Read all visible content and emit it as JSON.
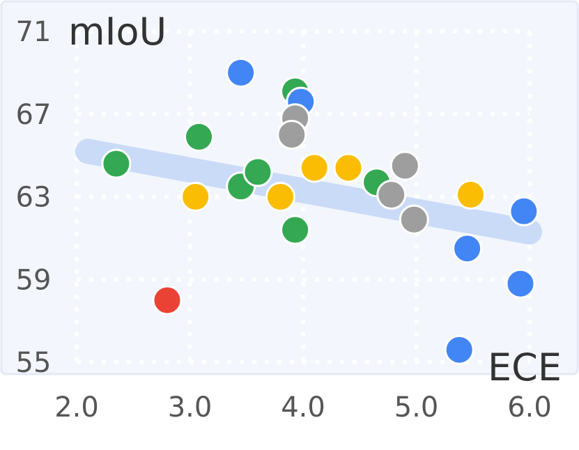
{
  "chart_data": {
    "type": "scatter",
    "xlabel": "ECE",
    "ylabel": "mIoU",
    "xlim": [
      2.0,
      6.0
    ],
    "ylim": [
      55,
      71
    ],
    "x_ticks": [
      "2.0",
      "3.0",
      "4.0",
      "5.0",
      "6.0"
    ],
    "y_ticks": [
      "55",
      "59",
      "63",
      "67",
      "71"
    ],
    "grid": true,
    "colors": {
      "background": "#f3f6fd",
      "blue": "#4285f4",
      "green": "#34a853",
      "yellow": "#fbbc04",
      "gray": "#9e9e9e",
      "red": "#ea4335",
      "trend": "#c6d9f7"
    },
    "trendline": {
      "x": [
        2.0,
        6.0
      ],
      "y": [
        65.2,
        61.3
      ]
    },
    "points": [
      {
        "x": 2.35,
        "y": 64.6,
        "color": "green"
      },
      {
        "x": 2.8,
        "y": 58.0,
        "color": "red"
      },
      {
        "x": 3.05,
        "y": 63.0,
        "color": "yellow"
      },
      {
        "x": 3.08,
        "y": 65.9,
        "color": "green"
      },
      {
        "x": 3.45,
        "y": 69.0,
        "color": "blue"
      },
      {
        "x": 3.45,
        "y": 63.5,
        "color": "green"
      },
      {
        "x": 3.6,
        "y": 64.2,
        "color": "green"
      },
      {
        "x": 3.8,
        "y": 63.0,
        "color": "yellow"
      },
      {
        "x": 3.93,
        "y": 68.1,
        "color": "green"
      },
      {
        "x": 3.98,
        "y": 67.6,
        "color": "blue"
      },
      {
        "x": 3.93,
        "y": 66.8,
        "color": "gray"
      },
      {
        "x": 3.9,
        "y": 66.0,
        "color": "gray"
      },
      {
        "x": 3.93,
        "y": 61.4,
        "color": "green"
      },
      {
        "x": 4.1,
        "y": 64.4,
        "color": "yellow"
      },
      {
        "x": 4.4,
        "y": 64.4,
        "color": "yellow"
      },
      {
        "x": 4.65,
        "y": 63.7,
        "color": "green"
      },
      {
        "x": 4.78,
        "y": 63.1,
        "color": "gray"
      },
      {
        "x": 4.9,
        "y": 64.5,
        "color": "gray"
      },
      {
        "x": 4.98,
        "y": 61.9,
        "color": "gray"
      },
      {
        "x": 5.48,
        "y": 63.1,
        "color": "yellow"
      },
      {
        "x": 5.45,
        "y": 60.5,
        "color": "blue"
      },
      {
        "x": 5.38,
        "y": 55.6,
        "color": "blue"
      },
      {
        "x": 5.92,
        "y": 58.8,
        "color": "blue"
      },
      {
        "x": 5.95,
        "y": 62.3,
        "color": "blue"
      }
    ]
  }
}
